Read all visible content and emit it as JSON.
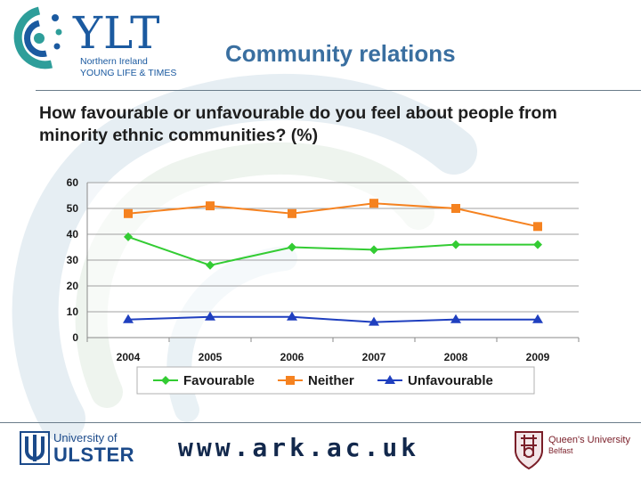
{
  "header": {
    "logo": {
      "main": "YLT",
      "line1": "Northern Ireland",
      "line2": "YOUNG LIFE & TIMES"
    },
    "title": "Community relations"
  },
  "question": "How favourable or unfavourable do you feel about people from minority ethnic communities? (%)",
  "footer": {
    "ulster_line1": "University of",
    "ulster_line2": "ULSTER",
    "url": "www.ark.ac.uk",
    "qub_line1": "Queen's University",
    "qub_line2": "Belfast"
  },
  "colors": {
    "favourable": "#33cc33",
    "neither": "#f58220",
    "unfavourable": "#1f3fbf",
    "title": "#3a6fa0"
  },
  "chart_data": {
    "type": "line",
    "categories": [
      "2004",
      "2005",
      "2006",
      "2007",
      "2008",
      "2009"
    ],
    "y_ticks": [
      "0",
      "10",
      "20",
      "30",
      "40",
      "50",
      "60"
    ],
    "ylim": [
      0,
      60
    ],
    "grid": true,
    "legend_position": "bottom",
    "series": [
      {
        "name": "Favourable",
        "values": [
          39,
          28,
          35,
          34,
          36,
          36
        ],
        "marker": "diamond"
      },
      {
        "name": "Neither",
        "values": [
          48,
          51,
          48,
          52,
          50,
          43
        ],
        "marker": "square"
      },
      {
        "name": "Unfavourable",
        "values": [
          7,
          8,
          8,
          6,
          7,
          7
        ],
        "marker": "triangle"
      }
    ]
  }
}
